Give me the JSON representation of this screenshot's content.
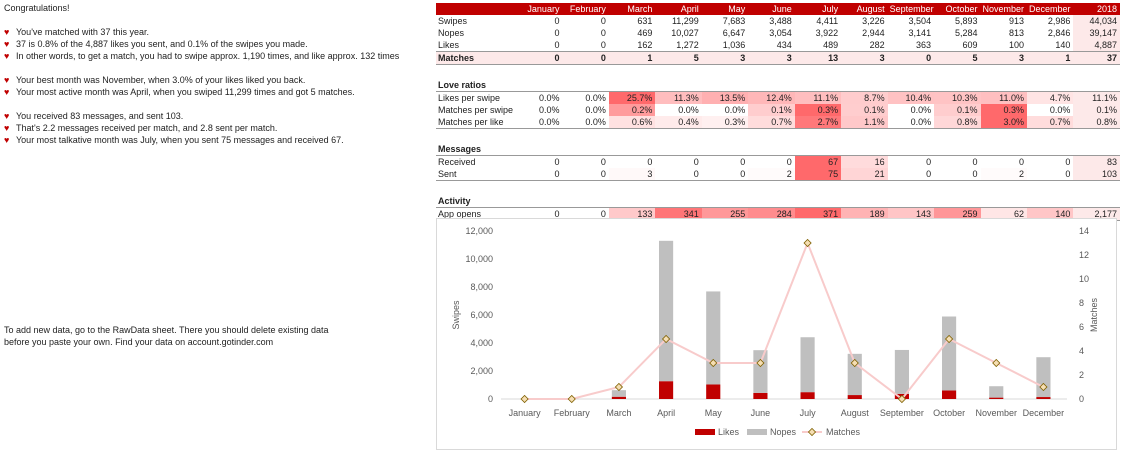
{
  "summary": {
    "heading": "Congratulations!",
    "groups": [
      [
        "You've matched with 37 this year.",
        "37 is 0.8% of the 4,887 likes you sent, and 0.1% of the swipes you made.",
        "In other words, to get a match, you had to swipe approx. 1,190 times, and like approx. 132 times"
      ],
      [
        "Your best month was November, when 3.0% of your likes liked you back.",
        "Your most active month was April, when you swiped 11,299 times and got 5 matches."
      ],
      [
        "You received 83 messages, and sent 103.",
        "That's 2.2 messages received per match, and 2.8 sent per match.",
        "Your most talkative month was July, when you sent 75 messages and received 67."
      ]
    ],
    "bullet_icon": "heart-icon",
    "note_line1": "To add new data, go to the RawData sheet. There you should delete existing data",
    "note_line2": "before you paste your own. Find your data on account.gotinder.com"
  },
  "colors": {
    "header": "#c00000",
    "likes": "#c00000",
    "nopes": "#bfbfbf",
    "matches_line": "#f8cbcb",
    "heat_max": "#f8696b"
  },
  "table": {
    "columns": [
      "January",
      "February",
      "March",
      "April",
      "May",
      "June",
      "July",
      "August",
      "September",
      "October",
      "November",
      "December",
      "2018"
    ],
    "sections": [
      {
        "title": "",
        "rows": [
          {
            "label": "Swipes",
            "values": [
              "0",
              "0",
              "631",
              "11,299",
              "7,683",
              "3,488",
              "4,411",
              "3,226",
              "3,504",
              "5,893",
              "913",
              "2,986",
              "44,034"
            ]
          },
          {
            "label": "Nopes",
            "values": [
              "0",
              "0",
              "469",
              "10,027",
              "6,647",
              "3,054",
              "3,922",
              "2,944",
              "3,141",
              "5,284",
              "813",
              "2,846",
              "39,147"
            ]
          },
          {
            "label": "Likes",
            "values": [
              "0",
              "0",
              "162",
              "1,272",
              "1,036",
              "434",
              "489",
              "282",
              "363",
              "609",
              "100",
              "140",
              "4,887"
            ]
          },
          {
            "label": "Matches",
            "values": [
              "0",
              "0",
              "1",
              "5",
              "3",
              "3",
              "13",
              "3",
              "0",
              "5",
              "3",
              "1",
              "37"
            ],
            "bold": true
          }
        ]
      },
      {
        "title": "Love ratios",
        "heat": true,
        "rows": [
          {
            "label": "Likes per swipe",
            "values": [
              "0.0%",
              "0.0%",
              "25.7%",
              "11.3%",
              "13.5%",
              "12.4%",
              "11.1%",
              "8.7%",
              "10.4%",
              "10.3%",
              "11.0%",
              "4.7%",
              "11.1%"
            ]
          },
          {
            "label": "Matches per swipe",
            "values": [
              "0.0%",
              "0.0%",
              "0.2%",
              "0.0%",
              "0.0%",
              "0.1%",
              "0.3%",
              "0.1%",
              "0.0%",
              "0.1%",
              "0.3%",
              "0.0%",
              "0.1%"
            ]
          },
          {
            "label": "Matches per like",
            "values": [
              "0.0%",
              "0.0%",
              "0.6%",
              "0.4%",
              "0.3%",
              "0.7%",
              "2.7%",
              "1.1%",
              "0.0%",
              "0.8%",
              "3.0%",
              "0.7%",
              "0.8%"
            ]
          }
        ]
      },
      {
        "title": "Messages",
        "heat": true,
        "rows": [
          {
            "label": "Received",
            "values": [
              "0",
              "0",
              "0",
              "0",
              "0",
              "0",
              "67",
              "16",
              "0",
              "0",
              "0",
              "0",
              "83"
            ]
          },
          {
            "label": "Sent",
            "values": [
              "0",
              "0",
              "3",
              "0",
              "0",
              "2",
              "75",
              "21",
              "0",
              "0",
              "2",
              "0",
              "103"
            ]
          }
        ]
      },
      {
        "title": "Activity",
        "heat": true,
        "rows": [
          {
            "label": "App opens",
            "values": [
              "0",
              "0",
              "133",
              "341",
              "255",
              "284",
              "371",
              "189",
              "143",
              "259",
              "62",
              "140",
              "2,177"
            ]
          }
        ]
      }
    ]
  },
  "chart_data": {
    "type": "bar",
    "categories": [
      "January",
      "February",
      "March",
      "April",
      "May",
      "June",
      "July",
      "August",
      "September",
      "October",
      "November",
      "December"
    ],
    "series": [
      {
        "name": "Likes",
        "type": "stacked-bar",
        "axis": "left",
        "values": [
          0,
          0,
          162,
          1272,
          1036,
          434,
          489,
          282,
          363,
          609,
          100,
          140
        ]
      },
      {
        "name": "Nopes",
        "type": "stacked-bar",
        "axis": "left",
        "values": [
          0,
          0,
          469,
          10027,
          6647,
          3054,
          3922,
          2944,
          3141,
          5284,
          813,
          2846
        ]
      },
      {
        "name": "Matches",
        "type": "line",
        "axis": "right",
        "values": [
          0,
          0,
          1,
          5,
          3,
          3,
          13,
          3,
          0,
          5,
          3,
          1
        ]
      }
    ],
    "ylabel": "Swipes",
    "y2label": "Matches",
    "ylim": [
      0,
      12000
    ],
    "yticks": [
      "0",
      "2,000",
      "4,000",
      "6,000",
      "8,000",
      "10,000",
      "12,000"
    ],
    "y2lim": [
      0,
      14
    ],
    "y2ticks": [
      "0",
      "2",
      "4",
      "6",
      "8",
      "10",
      "12",
      "14"
    ],
    "grid": false,
    "legend": "bottom"
  }
}
